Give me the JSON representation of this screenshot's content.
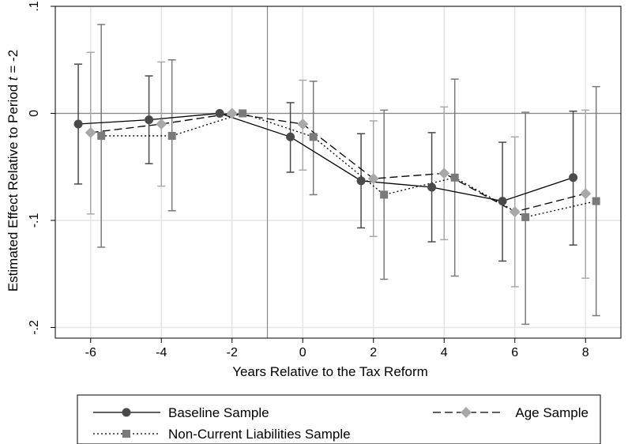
{
  "chart_data": {
    "type": "line",
    "xlabel": "Years Relative to the Tax Reform",
    "ylabel_prefix": "Estimated Effect Relative to Period ",
    "ylabel_var": "t",
    "ylabel_suffix": " = -2",
    "xlim": [
      -7,
      9
    ],
    "ylim": [
      -0.21,
      0.1
    ],
    "xticks": [
      -6,
      -4,
      -2,
      0,
      2,
      4,
      6,
      8
    ],
    "xtick_labels": [
      "-6",
      "-4",
      "-2",
      "0",
      "2",
      "4",
      "6",
      "8"
    ],
    "yticks": [
      -0.2,
      -0.1,
      0,
      0.1
    ],
    "ytick_labels": [
      "-.2",
      "-.1",
      "0",
      ".1"
    ],
    "grid": true,
    "vertical_reference_line_x": -1,
    "horizontal_reference_line_y": 0,
    "legend_position": "bottom",
    "series": [
      {
        "name": "Baseline Sample",
        "line_style": "solid",
        "marker": "circle",
        "color": "#4a4a4a",
        "x_offset": -0.35,
        "x": [
          -6,
          -4,
          -2,
          0,
          2,
          4,
          6,
          8
        ],
        "y": [
          -0.01,
          -0.006,
          0.0,
          -0.022,
          -0.063,
          -0.069,
          -0.082,
          -0.06
        ],
        "ci_low": [
          -0.066,
          -0.047,
          0.0,
          -0.055,
          -0.107,
          -0.12,
          -0.138,
          -0.123
        ],
        "ci_high": [
          0.046,
          0.035,
          0.0,
          0.01,
          -0.019,
          -0.018,
          -0.027,
          0.002
        ]
      },
      {
        "name": "Age Sample",
        "line_style": "dash",
        "marker": "diamond",
        "color": "#a8a8a8",
        "x_offset": 0.0,
        "x": [
          -6,
          -4,
          -2,
          0,
          2,
          4,
          6,
          8
        ],
        "y": [
          -0.018,
          -0.01,
          0.0,
          -0.01,
          -0.061,
          -0.056,
          -0.092,
          -0.075
        ],
        "ci_low": [
          -0.094,
          -0.068,
          0.0,
          -0.053,
          -0.115,
          -0.118,
          -0.162,
          -0.154
        ],
        "ci_high": [
          0.057,
          0.048,
          0.0,
          0.031,
          -0.007,
          0.006,
          -0.022,
          0.003
        ]
      },
      {
        "name": "Non-Current Liabilities Sample",
        "line_style": "dot",
        "marker": "square",
        "color": "#7a7a7a",
        "x_offset": 0.3,
        "x": [
          -6,
          -4,
          -2,
          0,
          2,
          4,
          6,
          8
        ],
        "y": [
          -0.021,
          -0.021,
          0.0,
          -0.022,
          -0.076,
          -0.06,
          -0.097,
          -0.082
        ],
        "ci_low": [
          -0.125,
          -0.091,
          0.0,
          -0.076,
          -0.155,
          -0.152,
          -0.197,
          -0.189
        ],
        "ci_high": [
          0.083,
          0.05,
          0.0,
          0.03,
          0.003,
          0.032,
          0.001,
          0.025
        ]
      }
    ]
  }
}
